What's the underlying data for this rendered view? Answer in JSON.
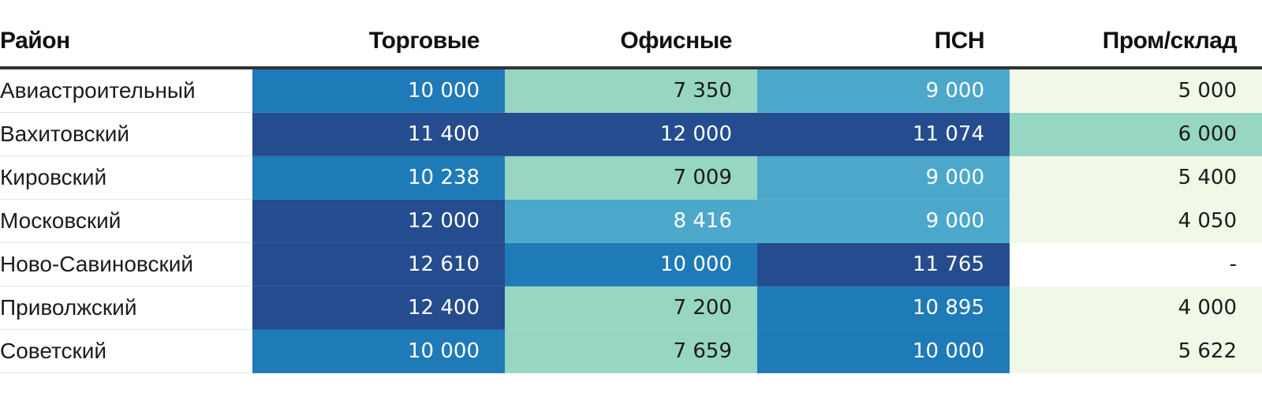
{
  "colors": {
    "scale": [
      "#f0f9e8",
      "#ffffff",
      "#97d6c2",
      "#4ba8cb",
      "#1f7ab8",
      "#244c8e"
    ],
    "light_text": "#ffffff",
    "dark_text": "#1b1b1b"
  },
  "chart_data": {
    "type": "table",
    "columns": [
      "Район",
      "Торговые",
      "Офисные",
      "ПСН",
      "Пром/склад"
    ],
    "rows": [
      {
        "name": "Авиастроительный",
        "values": [
          "10 000",
          "7 350",
          "9 000",
          "5 000"
        ]
      },
      {
        "name": "Вахитовский",
        "values": [
          "11 400",
          "12 000",
          "11 074",
          "6 000"
        ]
      },
      {
        "name": "Кировский",
        "values": [
          "10 238",
          "7 009",
          "9 000",
          "5 400"
        ]
      },
      {
        "name": "Московский",
        "values": [
          "12 000",
          "8 416",
          "9 000",
          "4 050"
        ]
      },
      {
        "name": "Ново-Савиновский",
        "values": [
          "12 610",
          "10 000",
          "11 765",
          "-"
        ]
      },
      {
        "name": "Приволжский",
        "values": [
          "12 400",
          "7 200",
          "10 895",
          "4 000"
        ]
      },
      {
        "name": "Советский",
        "values": [
          "10 000",
          "7 659",
          "10 000",
          "5 622"
        ]
      }
    ]
  }
}
